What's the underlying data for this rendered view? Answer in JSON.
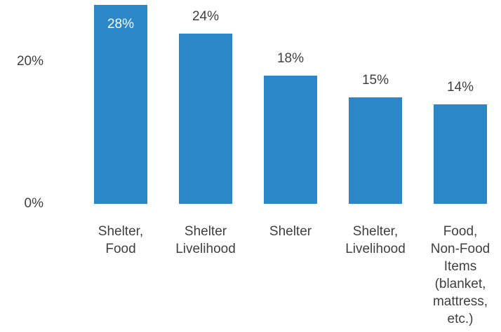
{
  "chart_data": {
    "type": "bar",
    "categories": [
      "Shelter,\nFood",
      "Shelter\nLivelihood",
      "Shelter",
      "Shelter,\nLivelihood",
      "Food,\nNon-Food\nItems\n(blanket,\nmattress,\netc.)"
    ],
    "values": [
      28,
      24,
      18,
      15,
      14
    ],
    "data_labels": [
      "28%",
      "24%",
      "18%",
      "15%",
      "14%"
    ],
    "y_ticks": [
      {
        "value": 0,
        "label": "0%"
      },
      {
        "value": 20,
        "label": "20%"
      }
    ],
    "ylim": [
      0,
      28
    ],
    "title": "",
    "xlabel": "",
    "ylabel": "",
    "grid": false,
    "colors": {
      "bar": "#2b87c8",
      "text": "#404040",
      "label_inside": "#ffffff"
    }
  }
}
